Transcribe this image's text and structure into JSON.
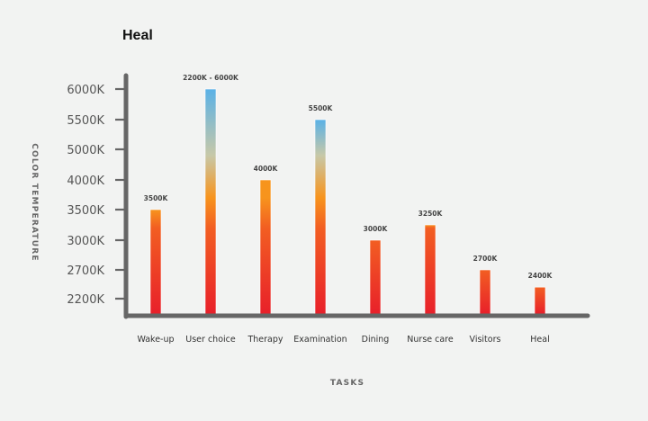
{
  "chart_data": {
    "type": "bar",
    "title": "Heal",
    "xlabel": "TASKS",
    "ylabel": "COLOR TEMPERATURE",
    "ytick_labels": [
      "2200K",
      "2700K",
      "3000K",
      "3500K",
      "4000K",
      "5000K",
      "5500K",
      "6000K"
    ],
    "categories": [
      "Wake-up",
      "User choice",
      "Therapy",
      "Examination",
      "Dining",
      "Nurse care",
      "Visitors",
      "Heal"
    ],
    "values": [
      3500,
      6000,
      4000,
      5500,
      3000,
      3250,
      2700,
      2400
    ],
    "data_labels": [
      "3500K",
      "2200K - 6000K",
      "4000K",
      "5500K",
      "3000K",
      "3250K",
      "2700K",
      "2400K"
    ],
    "grid": false,
    "colors": {
      "warm_bottom": "#e8202a",
      "warm_mid": "#f7941d",
      "neutral": "#c7c8a8",
      "cool_top": "#5ab1e6",
      "axis": "#666666"
    }
  }
}
